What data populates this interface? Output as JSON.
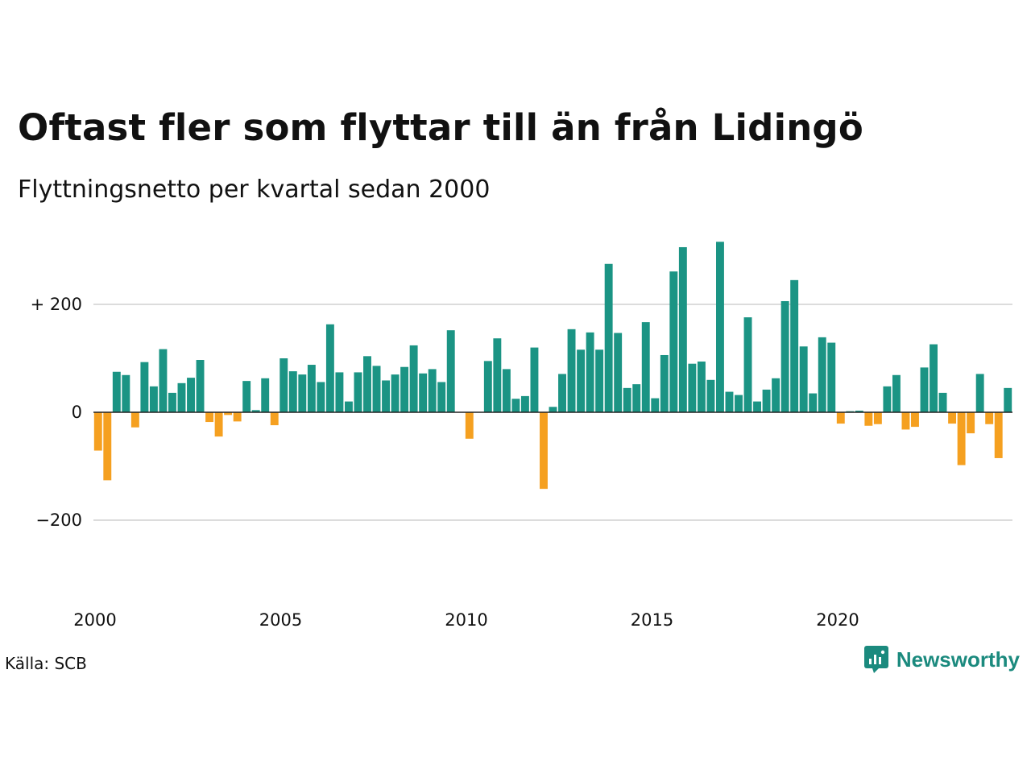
{
  "title": "Oftast fler som flyttar till än från Lidingö",
  "subtitle": "Flyttningsnetto per kvartal sedan 2000",
  "source": "Källa: SCB",
  "brand": "Newsworthy",
  "colors": {
    "positive": "#1b9484",
    "negative": "#f5a020",
    "grid": "#dcdcdc",
    "brand": "#1b8a7e"
  },
  "chart_data": {
    "type": "bar",
    "ylim": [
      -300,
      320
    ],
    "y_ticks": [
      {
        "value": 200,
        "label": "+ 200"
      },
      {
        "value": 0,
        "label": "0"
      },
      {
        "value": -200,
        "label": "−200"
      }
    ],
    "x_ticks": [
      {
        "year": 2000,
        "label": "2000"
      },
      {
        "year": 2005,
        "label": "2005"
      },
      {
        "year": 2010,
        "label": "2010"
      },
      {
        "year": 2015,
        "label": "2015"
      },
      {
        "year": 2020,
        "label": "2020"
      }
    ],
    "start_year": 2000,
    "frequency": "quarterly",
    "values": [
      -71,
      -126,
      75,
      69,
      -28,
      93,
      48,
      117,
      36,
      54,
      64,
      97,
      -18,
      -45,
      -5,
      -17,
      58,
      4,
      63,
      -24,
      100,
      76,
      70,
      88,
      56,
      163,
      74,
      20,
      74,
      104,
      86,
      59,
      70,
      84,
      124,
      72,
      80,
      56,
      152,
      0,
      -49,
      0,
      95,
      137,
      80,
      25,
      30,
      120,
      -142,
      10,
      71,
      154,
      116,
      148,
      116,
      275,
      147,
      45,
      52,
      167,
      26,
      106,
      261,
      306,
      90,
      94,
      60,
      316,
      38,
      32,
      176,
      20,
      42,
      63,
      206,
      245,
      122,
      35,
      139,
      129,
      -21,
      2,
      3,
      -25,
      -22,
      48,
      69,
      -32,
      -27,
      83,
      126,
      36,
      -21,
      -98,
      -39,
      71,
      -22,
      -85,
      45
    ]
  }
}
